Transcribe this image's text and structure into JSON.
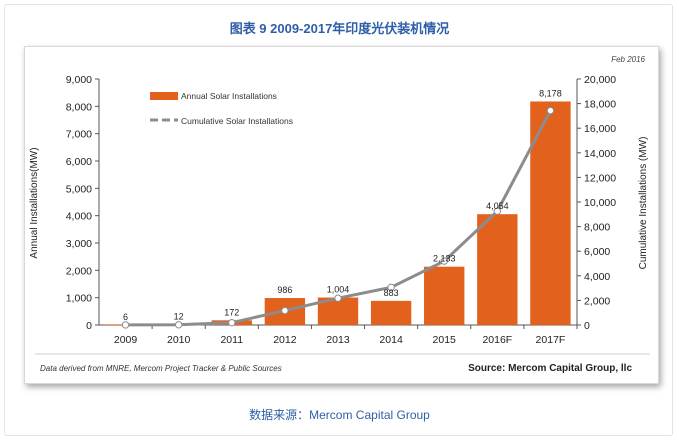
{
  "page": {
    "title": "图表 9  2009-2017年印度光伏装机情况",
    "caption": "数据来源：Mercom Capital Group"
  },
  "chart_data": {
    "type": "bar",
    "date_note": "Feb 2016",
    "categories": [
      "2009",
      "2010",
      "2011",
      "2012",
      "2013",
      "2014",
      "2015",
      "2016F",
      "2017F"
    ],
    "series": [
      {
        "name": "Annual Solar Installations",
        "type": "bar",
        "axis": "left",
        "color": "#e2611c",
        "values": [
          6,
          12,
          172,
          986,
          1004,
          883,
          2133,
          4054,
          8178
        ]
      },
      {
        "name": "Cumulative Solar Installations",
        "type": "line",
        "axis": "right",
        "color": "#8c8c8c",
        "values": [
          6,
          18,
          190,
          1176,
          2180,
          3063,
          5196,
          9250,
          17428
        ]
      }
    ],
    "data_labels": [
      "6",
      "12",
      "172",
      "986",
      "1,004",
      "883",
      "2,133",
      "4,054",
      "8,178"
    ],
    "ylabel_left": "Annual Installations(MW)",
    "ylabel_right": "Cumulative Installations (MW)",
    "ylim_left": [
      0,
      9000
    ],
    "ylim_right": [
      0,
      20000
    ],
    "yticks_left": [
      "0",
      "1,000",
      "2,000",
      "3,000",
      "4,000",
      "5,000",
      "6,000",
      "7,000",
      "8,000",
      "9,000"
    ],
    "yticks_right": [
      "0",
      "2,000",
      "4,000",
      "6,000",
      "8,000",
      "10,000",
      "12,000",
      "14,000",
      "16,000",
      "18,000",
      "20,000"
    ],
    "footnote": "Data derived from MNRE, Mercom Project Tracker & Public  Sources",
    "source": "Source: Mercom Capital Group, llc",
    "legend_position": "top-left"
  }
}
